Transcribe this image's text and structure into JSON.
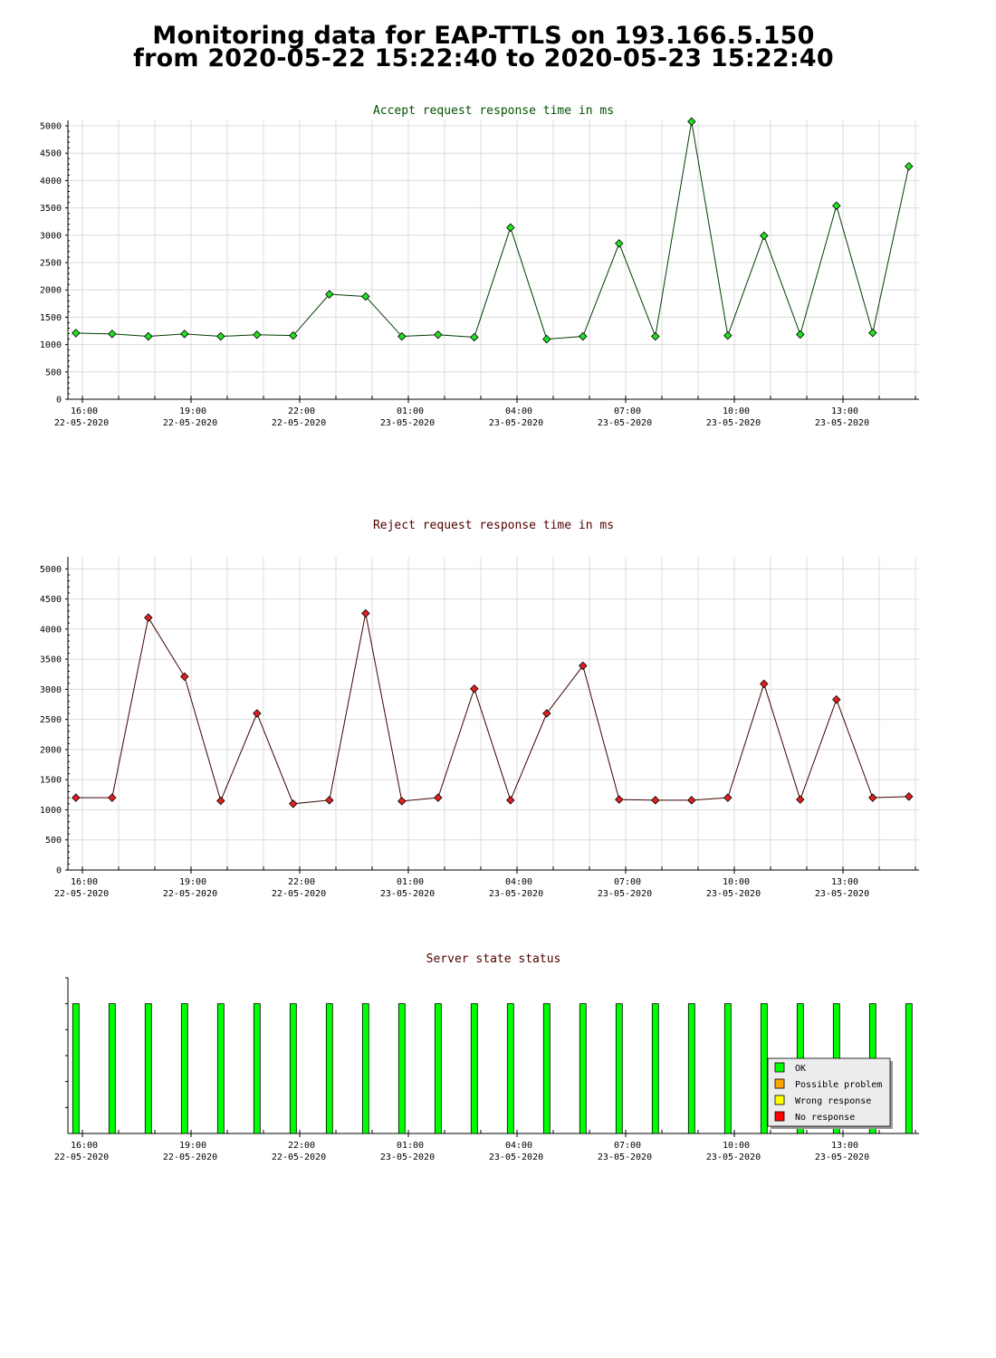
{
  "page": {
    "title_line1": "Monitoring data for EAP-TTLS on 193.166.5.150",
    "title_line2": "from 2020-05-22 15:22:40 to 2020-05-23 15:22:40"
  },
  "chart_data": [
    {
      "type": "line",
      "title": "Accept request response time in ms",
      "title_color": "#005000",
      "line_color": "#003c00",
      "marker_color": "#22e022",
      "ylim": [
        0,
        5100
      ],
      "yticks": [
        0,
        500,
        1000,
        1500,
        2000,
        2500,
        3000,
        3500,
        4000,
        4500,
        5000
      ],
      "grid": true,
      "xlim_hours": [
        15.6,
        39.1
      ],
      "xticks": [
        {
          "t": 16,
          "time": "16:00",
          "date": "22-05-2020"
        },
        {
          "t": 19,
          "time": "19:00",
          "date": "22-05-2020"
        },
        {
          "t": 22,
          "time": "22:00",
          "date": "22-05-2020"
        },
        {
          "t": 25,
          "time": "01:00",
          "date": "23-05-2020"
        },
        {
          "t": 28,
          "time": "04:00",
          "date": "23-05-2020"
        },
        {
          "t": 31,
          "time": "07:00",
          "date": "23-05-2020"
        },
        {
          "t": 34,
          "time": "10:00",
          "date": "23-05-2020"
        },
        {
          "t": 37,
          "time": "13:00",
          "date": "23-05-2020"
        }
      ],
      "x_hours": [
        15.82,
        16.82,
        17.82,
        18.82,
        19.82,
        20.82,
        21.82,
        22.82,
        23.82,
        24.82,
        25.82,
        26.82,
        27.82,
        28.82,
        29.82,
        30.82,
        31.82,
        32.82,
        33.82,
        34.82,
        35.82,
        36.82,
        37.82,
        38.82
      ],
      "values": [
        1210,
        1195,
        1150,
        1195,
        1150,
        1180,
        1165,
        1920,
        1880,
        1150,
        1180,
        1135,
        3140,
        1100,
        1150,
        2850,
        1150,
        5080,
        1165,
        2990,
        1185,
        3540,
        1215,
        4260
      ]
    },
    {
      "type": "line",
      "title": "Reject request response time in ms",
      "title_color": "#500000",
      "line_color": "#3c0000",
      "marker_color": "#e02020",
      "ylim": [
        0,
        5200
      ],
      "yticks": [
        0,
        500,
        1000,
        1500,
        2000,
        2500,
        3000,
        3500,
        4000,
        4500,
        5000
      ],
      "grid": true,
      "xlim_hours": [
        15.6,
        39.1
      ],
      "xticks": [
        {
          "t": 16,
          "time": "16:00",
          "date": "22-05-2020"
        },
        {
          "t": 19,
          "time": "19:00",
          "date": "22-05-2020"
        },
        {
          "t": 22,
          "time": "22:00",
          "date": "22-05-2020"
        },
        {
          "t": 25,
          "time": "01:00",
          "date": "23-05-2020"
        },
        {
          "t": 28,
          "time": "04:00",
          "date": "23-05-2020"
        },
        {
          "t": 31,
          "time": "07:00",
          "date": "23-05-2020"
        },
        {
          "t": 34,
          "time": "10:00",
          "date": "23-05-2020"
        },
        {
          "t": 37,
          "time": "13:00",
          "date": "23-05-2020"
        }
      ],
      "x_hours": [
        15.82,
        16.82,
        17.82,
        18.82,
        19.82,
        20.82,
        21.82,
        22.82,
        23.82,
        24.82,
        25.82,
        26.82,
        27.82,
        28.82,
        29.82,
        30.82,
        31.82,
        32.82,
        33.82,
        34.82,
        35.82,
        36.82,
        37.82,
        38.82
      ],
      "values": [
        1200,
        1200,
        4190,
        3210,
        1150,
        2600,
        1100,
        1160,
        4260,
        1145,
        1200,
        3010,
        1160,
        2600,
        3390,
        1170,
        1160,
        1160,
        1200,
        3090,
        1170,
        2830,
        1200,
        1220
      ]
    },
    {
      "type": "bar",
      "title": "Server state status",
      "title_color": "#500000",
      "ylim": [
        0,
        1.2
      ],
      "grid": false,
      "xlim_hours": [
        15.6,
        39.1
      ],
      "xticks": [
        {
          "t": 16,
          "time": "16:00",
          "date": "22-05-2020"
        },
        {
          "t": 19,
          "time": "19:00",
          "date": "22-05-2020"
        },
        {
          "t": 22,
          "time": "22:00",
          "date": "22-05-2020"
        },
        {
          "t": 25,
          "time": "01:00",
          "date": "23-05-2020"
        },
        {
          "t": 28,
          "time": "04:00",
          "date": "23-05-2020"
        },
        {
          "t": 31,
          "time": "07:00",
          "date": "23-05-2020"
        },
        {
          "t": 34,
          "time": "10:00",
          "date": "23-05-2020"
        },
        {
          "t": 37,
          "time": "13:00",
          "date": "23-05-2020"
        }
      ],
      "x_hours": [
        15.82,
        16.82,
        17.82,
        18.82,
        19.82,
        20.82,
        21.82,
        22.82,
        23.82,
        24.82,
        25.82,
        26.82,
        27.82,
        28.82,
        29.82,
        30.82,
        31.82,
        32.82,
        33.82,
        34.82,
        35.82,
        36.82,
        37.82,
        38.82
      ],
      "states": [
        "OK",
        "OK",
        "OK",
        "OK",
        "OK",
        "OK",
        "OK",
        "OK",
        "OK",
        "OK",
        "OK",
        "OK",
        "OK",
        "OK",
        "OK",
        "OK",
        "OK",
        "OK",
        "OK",
        "OK",
        "OK",
        "OK",
        "OK",
        "OK"
      ],
      "values": [
        1,
        1,
        1,
        1,
        1,
        1,
        1,
        1,
        1,
        1,
        1,
        1,
        1,
        1,
        1,
        1,
        1,
        1,
        1,
        1,
        1,
        1,
        1,
        1
      ],
      "legend_position": "bottom-right",
      "legend": [
        {
          "label": "OK",
          "color": "#00ff00"
        },
        {
          "label": "Possible problem",
          "color": "#ffa500"
        },
        {
          "label": "Wrong response",
          "color": "#ffff00"
        },
        {
          "label": "No response",
          "color": "#ff0000"
        }
      ]
    }
  ]
}
